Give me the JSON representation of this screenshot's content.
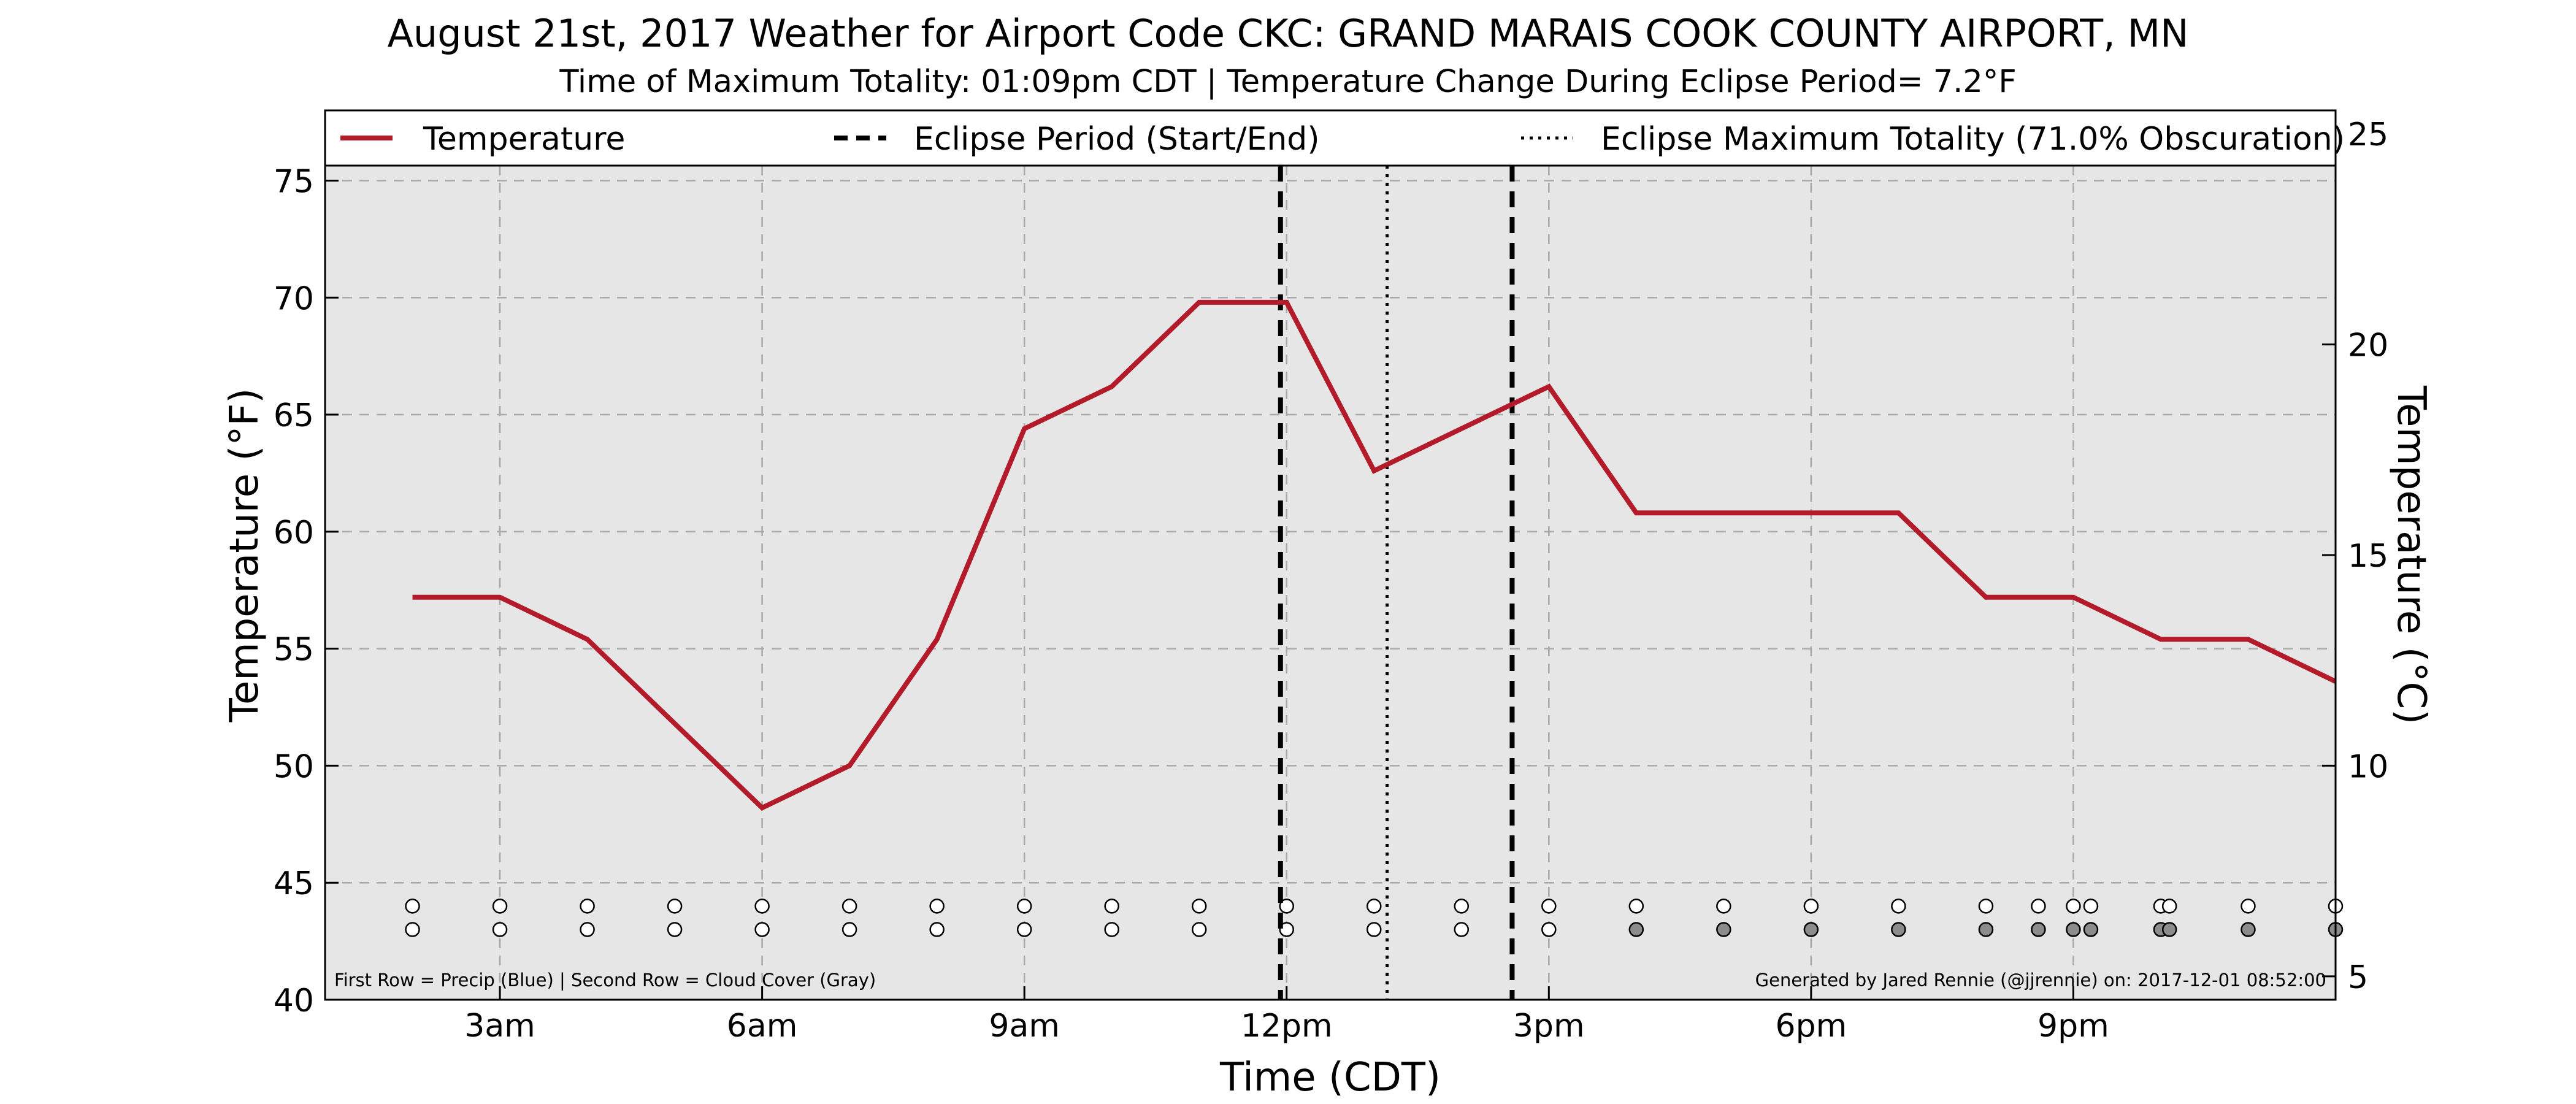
{
  "chart_data": {
    "type": "line",
    "title": "August 21st, 2017 Weather for Airport Code CKC: GRAND MARAIS COOK COUNTY AIRPORT, MN",
    "subtitle": "Time of Maximum Totality: 01:09pm CDT | Temperature Change During Eclipse Period= 7.2°F",
    "xlabel": "Time (CDT)",
    "ylabel": "Temperature (°F)",
    "ylabel_right": "Temperature (°C)",
    "xlim": [
      1,
      24
    ],
    "ylim": [
      40,
      78
    ],
    "ylim_right_c": [
      4.444,
      25.556
    ],
    "x_ticks": [
      {
        "x": 3,
        "label": "3am"
      },
      {
        "x": 6,
        "label": "6am"
      },
      {
        "x": 9,
        "label": "9am"
      },
      {
        "x": 12,
        "label": "12pm"
      },
      {
        "x": 15,
        "label": "3pm"
      },
      {
        "x": 18,
        "label": "6pm"
      },
      {
        "x": 21,
        "label": "9pm"
      }
    ],
    "y_ticks": [
      40,
      45,
      50,
      55,
      60,
      65,
      70,
      75
    ],
    "y_ticks_right": [
      5,
      10,
      15,
      20,
      25
    ],
    "grid": true,
    "legend_position": "top",
    "legend": [
      {
        "label": "Temperature",
        "style": "solid"
      },
      {
        "label": "Eclipse Period (Start/End)",
        "style": "dashed"
      },
      {
        "label": "Eclipse Maximum Totality (71.0% Obscuration)",
        "style": "dotted"
      }
    ],
    "series": [
      {
        "name": "Temperature",
        "color": "#b31b2b",
        "x": [
          2,
          3,
          4,
          6,
          7,
          8,
          9,
          10,
          11,
          12,
          13,
          14,
          15,
          16,
          17,
          18,
          19,
          20,
          21,
          22,
          23,
          24
        ],
        "y": [
          57.2,
          57.2,
          55.4,
          48.2,
          50.0,
          55.4,
          64.4,
          66.2,
          69.8,
          69.8,
          62.6,
          64.4,
          66.2,
          60.8,
          60.8,
          60.8,
          60.8,
          57.2,
          57.2,
          55.4,
          55.4,
          53.6
        ]
      }
    ],
    "eclipse_lines": [
      {
        "x": 11.93,
        "style": "dashed"
      },
      {
        "x": 14.58,
        "style": "dashed"
      },
      {
        "x": 13.15,
        "style": "dotted"
      }
    ],
    "precip_row_y": 44,
    "cloud_row_y": 43,
    "observations_x": [
      2,
      3,
      4,
      5,
      6,
      7,
      8,
      9,
      10,
      11,
      12,
      13,
      14,
      15,
      16,
      17,
      18,
      19,
      20,
      20.6,
      21,
      21.2,
      22,
      22.1,
      23,
      24
    ],
    "cloud_cover_gray": [
      false,
      false,
      false,
      false,
      false,
      false,
      false,
      false,
      false,
      false,
      false,
      false,
      false,
      false,
      true,
      true,
      true,
      true,
      true,
      true,
      true,
      true,
      true,
      true,
      true,
      true
    ],
    "footnote_left": "First Row = Precip (Blue) | Second Row = Cloud Cover (Gray)",
    "footnote_right": "Generated by Jared Rennie (@jjrennie) on: 2017-12-01 08:52:00"
  }
}
